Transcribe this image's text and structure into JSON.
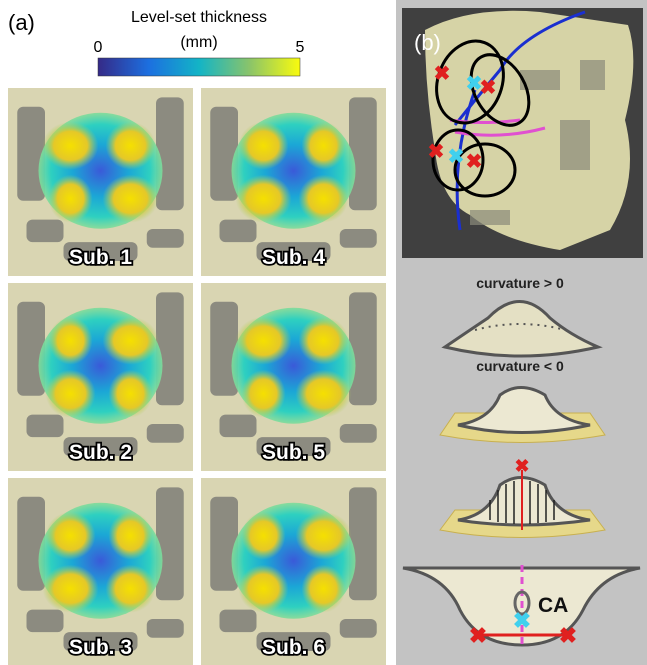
{
  "panel_a": {
    "label": "(a)",
    "colorbar": {
      "title": "Level-set thickness",
      "unit": "(mm)",
      "ticks": [
        0,
        5
      ]
    },
    "subjects": [
      "Sub. 1",
      "Sub. 4",
      "Sub. 2",
      "Sub. 5",
      "Sub. 3",
      "Sub. 6"
    ]
  },
  "panel_b": {
    "label": "(b)",
    "captions": [
      "curvature > 0",
      "curvature < 0"
    ],
    "annotation": "CA"
  }
}
